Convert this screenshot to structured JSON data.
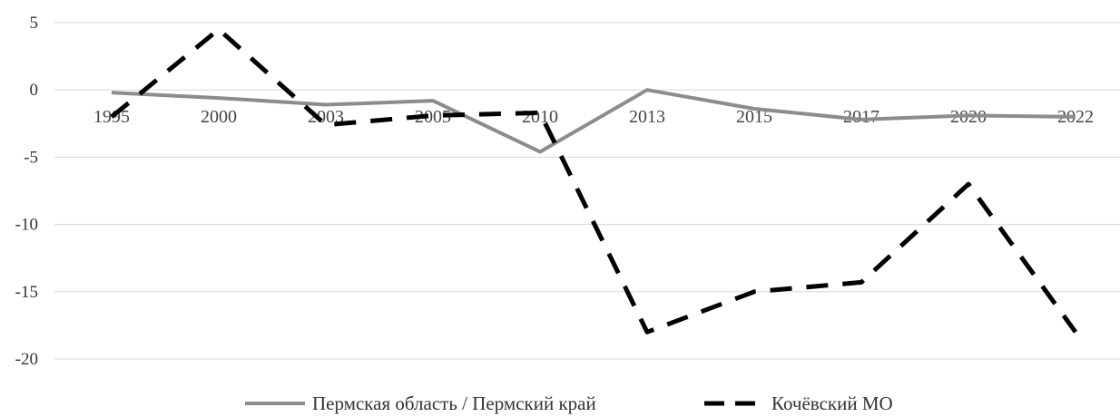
{
  "chart_data": {
    "type": "line",
    "categories": [
      "1995",
      "2000",
      "2003",
      "2005",
      "2010",
      "2013",
      "2015",
      "2017",
      "2020",
      "2022"
    ],
    "series": [
      {
        "name": "Пермская область / Пермский край",
        "values": [
          -0.2,
          -0.6,
          -1.1,
          -0.8,
          -4.6,
          0.0,
          -1.4,
          -2.2,
          -1.9,
          -2.0
        ],
        "color": "#8c8c8c",
        "style": "solid"
      },
      {
        "name": "Кочёвский МО",
        "values": [
          -2.0,
          4.5,
          -2.6,
          -1.9,
          -1.7,
          -18.0,
          -15.0,
          -14.3,
          -7.0,
          -18.0
        ],
        "color": "#000000",
        "style": "dashed"
      }
    ],
    "yticks": [
      "5",
      "0",
      "-5",
      "-10",
      "-15",
      "-20"
    ],
    "ylim": [
      -20,
      5
    ],
    "grid": true,
    "legend_position": "bottom"
  }
}
